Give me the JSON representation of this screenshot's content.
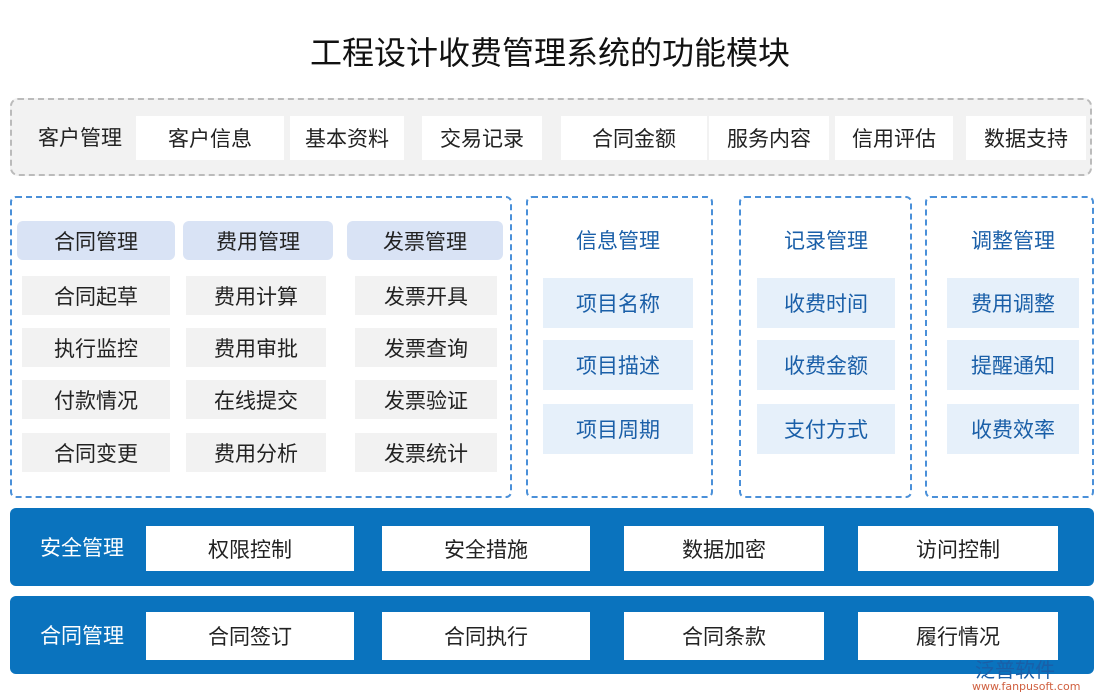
{
  "title": "工程设计收费管理系统的功能模块",
  "customer": {
    "label": "客户管理",
    "items": [
      "客户信息",
      "基本资料",
      "交易记录",
      "合同金额",
      "服务内容",
      "信用评估",
      "数据支持"
    ]
  },
  "left": {
    "headers": [
      "合同管理",
      "费用管理",
      "发票管理"
    ],
    "cols": [
      [
        "合同起草",
        "执行监控",
        "付款情况",
        "合同变更"
      ],
      [
        "费用计算",
        "费用审批",
        "在线提交",
        "费用分析"
      ],
      [
        "发票开具",
        "发票查询",
        "发票验证",
        "发票统计"
      ]
    ]
  },
  "info": {
    "title": "信息管理",
    "items": [
      "项目名称",
      "项目描述",
      "项目周期"
    ]
  },
  "record": {
    "title": "记录管理",
    "items": [
      "收费时间",
      "收费金额",
      "支付方式"
    ]
  },
  "adjust": {
    "title": "调整管理",
    "items": [
      "费用调整",
      "提醒通知",
      "收费效率"
    ]
  },
  "security": {
    "label": "安全管理",
    "items": [
      "权限控制",
      "安全措施",
      "数据加密",
      "访问控制"
    ]
  },
  "contract": {
    "label": "合同管理",
    "items": [
      "合同签订",
      "合同执行",
      "合同条款",
      "履行情况"
    ]
  },
  "logo": {
    "name": "泛普软件",
    "url": "www.fanpusoft.com"
  },
  "colors": {
    "blue": "#0a73be",
    "header": "#d9e3f5",
    "dash": "#4a90d9"
  }
}
